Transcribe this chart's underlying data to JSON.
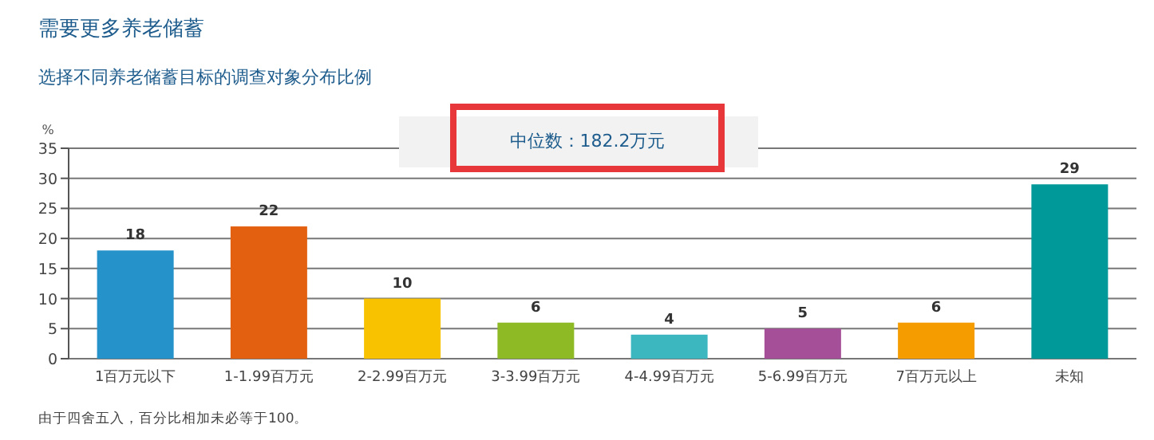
{
  "chart_data": {
    "type": "bar",
    "title": "需要更多养老储蓄",
    "subtitle": "选择不同养老储蓄目标的调查对象分布比例",
    "ylabel": "%",
    "categories": [
      "1百万元以下",
      "1-1.99百万元",
      "2-2.99百万元",
      "3-3.99百万元",
      "4-4.99百万元",
      "5-6.99百万元",
      "7百万元以上",
      "未知"
    ],
    "values": [
      18,
      22,
      10,
      6,
      4,
      5,
      6,
      29
    ],
    "colors": [
      "#2592c9",
      "#e2600f",
      "#f8c200",
      "#8dba25",
      "#3cb6bf",
      "#a54f98",
      "#f59c00",
      "#00999a"
    ],
    "ylim": [
      0,
      35
    ],
    "yticks": [
      0,
      5,
      10,
      15,
      20,
      25,
      30,
      35
    ],
    "grid": "y",
    "data_labels": true,
    "annotations": [
      "中位数：182.2万元",
      "由于四舍五入，百分比相加未必等于100。"
    ]
  }
}
